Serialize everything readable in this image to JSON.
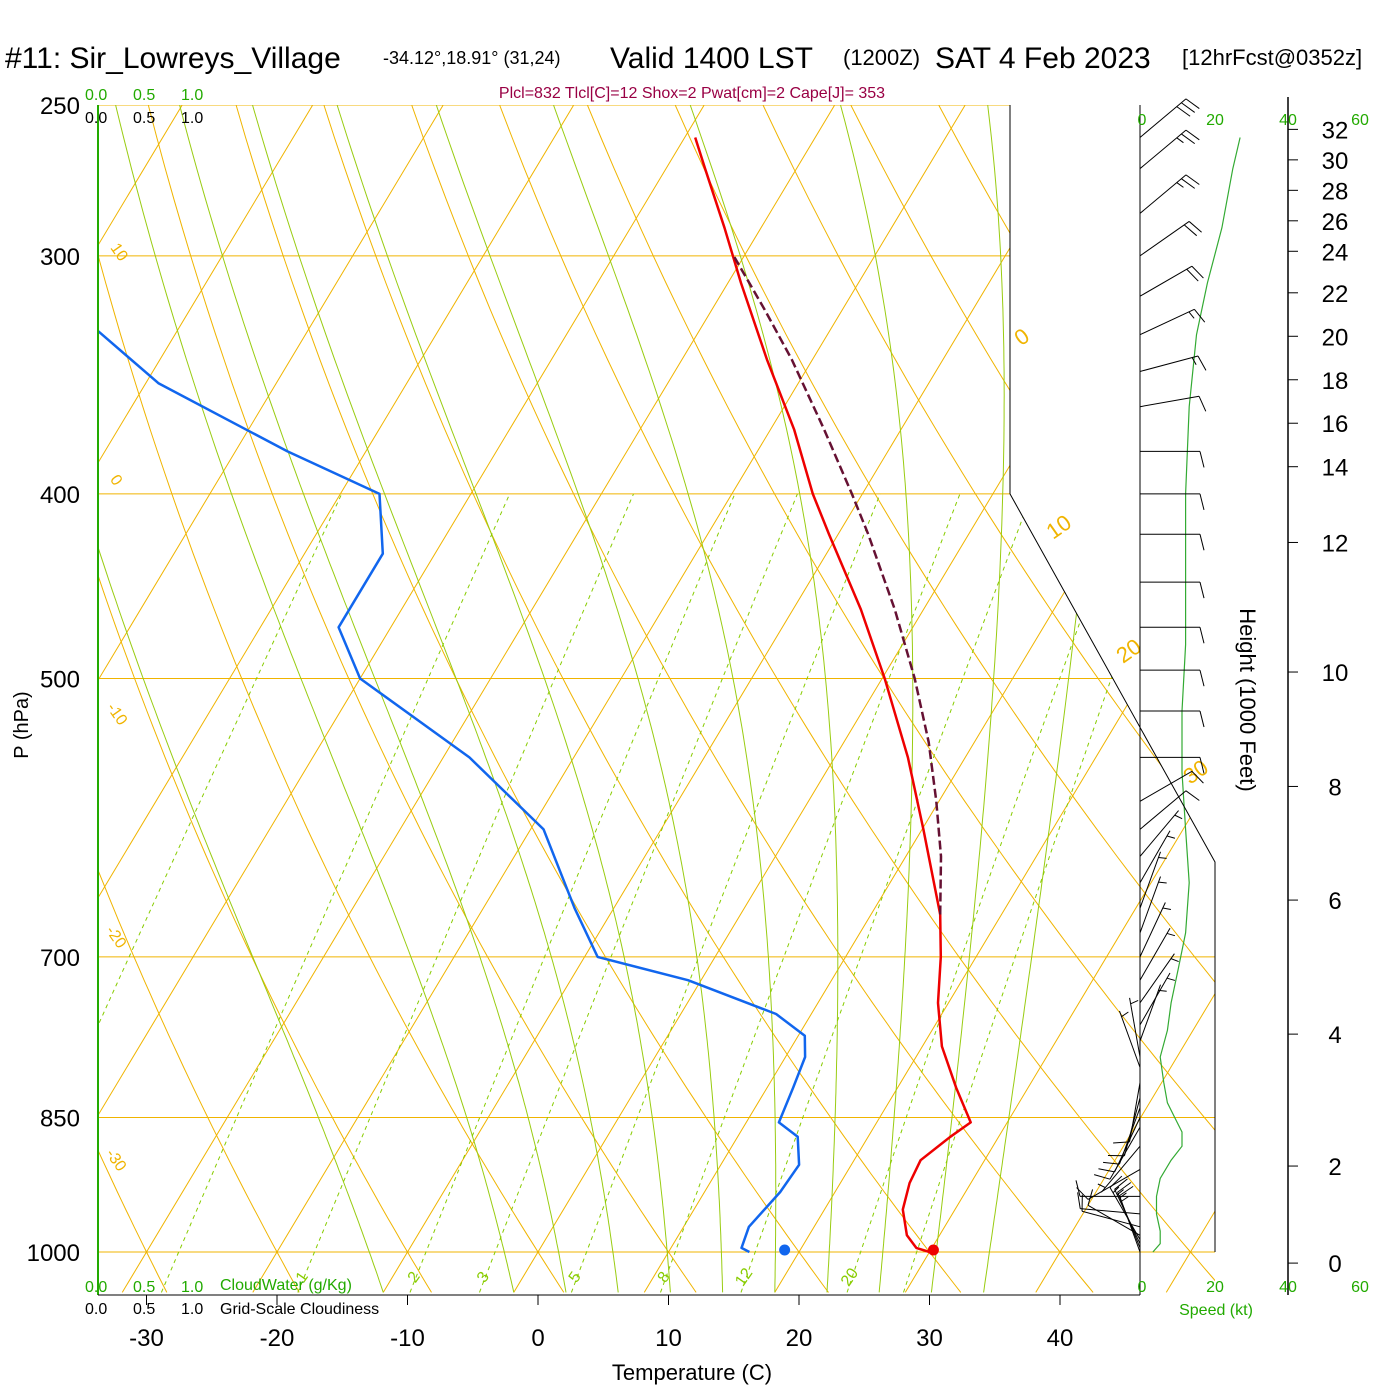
{
  "header": {
    "station": "#11: Sir_Lowreys_Village",
    "coords": "-34.12°,18.91° (31,24)",
    "valid": "Valid 1400 LST",
    "zulu": "(1200Z)",
    "date": "SAT 4 Feb 2023",
    "forecast": "[12hrFcst@0352z]"
  },
  "indices": "Plcl=832 Tlcl[C]=12 Shox=2 Pwat[cm]=2 Cape[J]= 353",
  "labels": {
    "ylabel": "P (hPa)",
    "xlabel": "Temperature (C)",
    "height_label": "Height (1000 Feet)",
    "speed_label": "Speed (kt)",
    "cloudwater_label": "CloudWater (g/Kg)",
    "cloudiness_label": "Grid-Scale Cloudiness"
  },
  "scales": {
    "top_green": [
      "0.0",
      "0.5",
      "1.0"
    ],
    "top_black": [
      "0.0",
      "0.5",
      "1.0"
    ],
    "bottom_green": [
      "0.0",
      "0.5",
      "1.0"
    ],
    "bottom_black": [
      "0.0",
      "0.5",
      "1.0"
    ],
    "speed_top": [
      "0",
      "20",
      "40",
      "60"
    ],
    "speed_bottom": [
      "0",
      "20",
      "40",
      "60"
    ]
  },
  "colors": {
    "temperature": "#ee0000",
    "dewpoint": "#1166ee",
    "parcel": "#661133",
    "isotherm": "#f0b400",
    "dry_adiabat": "#f0b400",
    "moist_adiabat": "#99cc11",
    "mixing_ratio": "#88cc00",
    "wind_speed": "#33aa33",
    "indices": "#990044"
  },
  "chart_data": {
    "type": "line",
    "pressure_ticks": [
      1000,
      850,
      700,
      500,
      400,
      300,
      250
    ],
    "temperature_ticks": [
      -30,
      -20,
      -10,
      0,
      10,
      20,
      30,
      40
    ],
    "height_ticks": [
      0,
      2,
      4,
      6,
      8,
      10,
      12,
      14,
      16,
      18,
      20,
      22,
      24,
      26,
      28,
      30,
      32
    ],
    "dry_adiabat_labels": [
      {
        "text": "10",
        "theta": 10
      },
      {
        "text": "0",
        "theta": 0
      },
      {
        "text": "-10",
        "theta": -10
      },
      {
        "text": "-20",
        "theta": -20
      },
      {
        "text": "-30",
        "theta": -30
      },
      {
        "text": "0",
        "theta": 0
      },
      {
        "text": "10",
        "theta": 10
      },
      {
        "text": "20",
        "theta": 20
      },
      {
        "text": "30",
        "theta": 30
      }
    ],
    "mixing_ratio_labels": [
      "1",
      "2",
      "3",
      "5",
      "8",
      "12",
      "20"
    ],
    "temperature_profile": [
      {
        "p": 1000,
        "t": 30.0
      },
      {
        "p": 995,
        "t": 28.8
      },
      {
        "p": 980,
        "t": 27.5
      },
      {
        "p": 950,
        "t": 26.0
      },
      {
        "p": 920,
        "t": 25.3
      },
      {
        "p": 895,
        "t": 25.1
      },
      {
        "p": 870,
        "t": 26.3
      },
      {
        "p": 855,
        "t": 27.2
      },
      {
        "p": 820,
        "t": 24.5
      },
      {
        "p": 780,
        "t": 21.5
      },
      {
        "p": 740,
        "t": 19.2
      },
      {
        "p": 700,
        "t": 17.3
      },
      {
        "p": 665,
        "t": 15.3
      },
      {
        "p": 600,
        "t": 10.1
      },
      {
        "p": 550,
        "t": 5.6
      },
      {
        "p": 500,
        "t": 0.2
      },
      {
        "p": 460,
        "t": -4.8
      },
      {
        "p": 420,
        "t": -10.7
      },
      {
        "p": 400,
        "t": -13.8
      },
      {
        "p": 370,
        "t": -18.2
      },
      {
        "p": 340,
        "t": -23.5
      },
      {
        "p": 310,
        "t": -29.0
      },
      {
        "p": 290,
        "t": -32.8
      },
      {
        "p": 270,
        "t": -37.0
      },
      {
        "p": 260,
        "t": -39.2
      }
    ],
    "dewpoint_profile": [
      {
        "p": 1000,
        "td": 16.2
      },
      {
        "p": 995,
        "td": 15.4
      },
      {
        "p": 970,
        "td": 15.0
      },
      {
        "p": 930,
        "td": 15.8
      },
      {
        "p": 900,
        "td": 16.0
      },
      {
        "p": 870,
        "td": 14.6
      },
      {
        "p": 855,
        "td": 12.5
      },
      {
        "p": 820,
        "td": 12.0
      },
      {
        "p": 790,
        "td": 11.5
      },
      {
        "p": 770,
        "td": 10.5
      },
      {
        "p": 750,
        "td": 7.3
      },
      {
        "p": 720,
        "td": -1.0
      },
      {
        "p": 700,
        "td": -9.0
      },
      {
        "p": 660,
        "td": -13.0
      },
      {
        "p": 600,
        "td": -19.0
      },
      {
        "p": 550,
        "td": -28.0
      },
      {
        "p": 500,
        "td": -40.0
      },
      {
        "p": 470,
        "td": -44.0
      },
      {
        "p": 430,
        "td": -44.0
      },
      {
        "p": 400,
        "td": -47.0
      },
      {
        "p": 380,
        "td": -56.0
      },
      {
        "p": 350,
        "td": -69.0
      },
      {
        "p": 320,
        "td": -79.0
      },
      {
        "p": 300,
        "td": -83.0
      },
      {
        "p": 280,
        "td": -84.0
      },
      {
        "p": 260,
        "td": -85.0
      }
    ],
    "parcel_profile": [
      {
        "p": 665,
        "t": 15.3
      },
      {
        "p": 620,
        "t": 12.7
      },
      {
        "p": 580,
        "t": 9.8
      },
      {
        "p": 540,
        "t": 6.5
      },
      {
        "p": 500,
        "t": 2.5
      },
      {
        "p": 460,
        "t": -2.2
      },
      {
        "p": 420,
        "t": -7.7
      },
      {
        "p": 400,
        "t": -10.8
      },
      {
        "p": 370,
        "t": -15.9
      },
      {
        "p": 340,
        "t": -21.6
      },
      {
        "p": 320,
        "t": -26.0
      },
      {
        "p": 300,
        "t": -30.8
      }
    ],
    "surface_temperature": 30.3,
    "surface_dewpoint": 18.9,
    "wind_speed_profile": [
      {
        "p": 1000,
        "s": 3
      },
      {
        "p": 990,
        "s": 5
      },
      {
        "p": 975,
        "s": 5
      },
      {
        "p": 955,
        "s": 4
      },
      {
        "p": 935,
        "s": 4
      },
      {
        "p": 915,
        "s": 5
      },
      {
        "p": 895,
        "s": 8
      },
      {
        "p": 880,
        "s": 11
      },
      {
        "p": 865,
        "s": 11
      },
      {
        "p": 850,
        "s": 9
      },
      {
        "p": 835,
        "s": 7
      },
      {
        "p": 815,
        "s": 6
      },
      {
        "p": 790,
        "s": 5
      },
      {
        "p": 765,
        "s": 7
      },
      {
        "p": 740,
        "s": 8
      },
      {
        "p": 710,
        "s": 10
      },
      {
        "p": 680,
        "s": 12
      },
      {
        "p": 640,
        "s": 13
      },
      {
        "p": 600,
        "s": 12
      },
      {
        "p": 560,
        "s": 11
      },
      {
        "p": 520,
        "s": 11
      },
      {
        "p": 480,
        "s": 12
      },
      {
        "p": 440,
        "s": 12
      },
      {
        "p": 400,
        "s": 12
      },
      {
        "p": 360,
        "s": 13
      },
      {
        "p": 330,
        "s": 15
      },
      {
        "p": 310,
        "s": 18
      },
      {
        "p": 290,
        "s": 22
      },
      {
        "p": 270,
        "s": 25
      },
      {
        "p": 260,
        "s": 27
      }
    ],
    "wind_barbs": [
      {
        "p": 1000,
        "dir": 160,
        "spd": 15
      },
      {
        "p": 995,
        "dir": 158,
        "spd": 15
      },
      {
        "p": 990,
        "dir": 155,
        "spd": 15
      },
      {
        "p": 985,
        "dir": 150,
        "spd": 15
      },
      {
        "p": 980,
        "dir": 120,
        "spd": 10
      },
      {
        "p": 970,
        "dir": 105,
        "spd": 10
      },
      {
        "p": 955,
        "dir": 95,
        "spd": 10
      },
      {
        "p": 935,
        "dir": 90,
        "spd": 10
      },
      {
        "p": 905,
        "dir": 60,
        "spd": 10
      },
      {
        "p": 880,
        "dir": 40,
        "spd": 5
      },
      {
        "p": 860,
        "dir": 30,
        "spd": 10
      },
      {
        "p": 850,
        "dir": 25,
        "spd": 10
      },
      {
        "p": 840,
        "dir": 20,
        "spd": 10
      },
      {
        "p": 830,
        "dir": 15,
        "spd": 10
      },
      {
        "p": 815,
        "dir": 10,
        "spd": 10
      },
      {
        "p": 800,
        "dir": 160,
        "spd": 5
      },
      {
        "p": 790,
        "dir": 170,
        "spd": 5
      },
      {
        "p": 775,
        "dir": 200,
        "spd": 5
      },
      {
        "p": 760,
        "dir": 210,
        "spd": 5
      },
      {
        "p": 740,
        "dir": 215,
        "spd": 5
      },
      {
        "p": 720,
        "dir": 210,
        "spd": 5
      },
      {
        "p": 700,
        "dir": 205,
        "spd": 5
      },
      {
        "p": 680,
        "dir": 200,
        "spd": 5
      },
      {
        "p": 660,
        "dir": 200,
        "spd": 5
      },
      {
        "p": 640,
        "dir": 210,
        "spd": 5
      },
      {
        "p": 620,
        "dir": 220,
        "spd": 5
      },
      {
        "p": 600,
        "dir": 230,
        "spd": 10
      },
      {
        "p": 580,
        "dir": 240,
        "spd": 10
      },
      {
        "p": 550,
        "dir": 270,
        "spd": 10
      },
      {
        "p": 520,
        "dir": 270,
        "spd": 10
      },
      {
        "p": 495,
        "dir": 270,
        "spd": 10
      },
      {
        "p": 470,
        "dir": 270,
        "spd": 10
      },
      {
        "p": 445,
        "dir": 270,
        "spd": 10
      },
      {
        "p": 420,
        "dir": 270,
        "spd": 10
      },
      {
        "p": 400,
        "dir": 270,
        "spd": 10
      },
      {
        "p": 380,
        "dir": 270,
        "spd": 10
      },
      {
        "p": 360,
        "dir": 260,
        "spd": 10
      },
      {
        "p": 345,
        "dir": 255,
        "spd": 15
      },
      {
        "p": 330,
        "dir": 245,
        "spd": 15
      },
      {
        "p": 315,
        "dir": 240,
        "spd": 20
      },
      {
        "p": 300,
        "dir": 235,
        "spd": 20
      },
      {
        "p": 285,
        "dir": 230,
        "spd": 25
      },
      {
        "p": 270,
        "dir": 230,
        "spd": 25
      },
      {
        "p": 260,
        "dir": 230,
        "spd": 30
      }
    ]
  }
}
